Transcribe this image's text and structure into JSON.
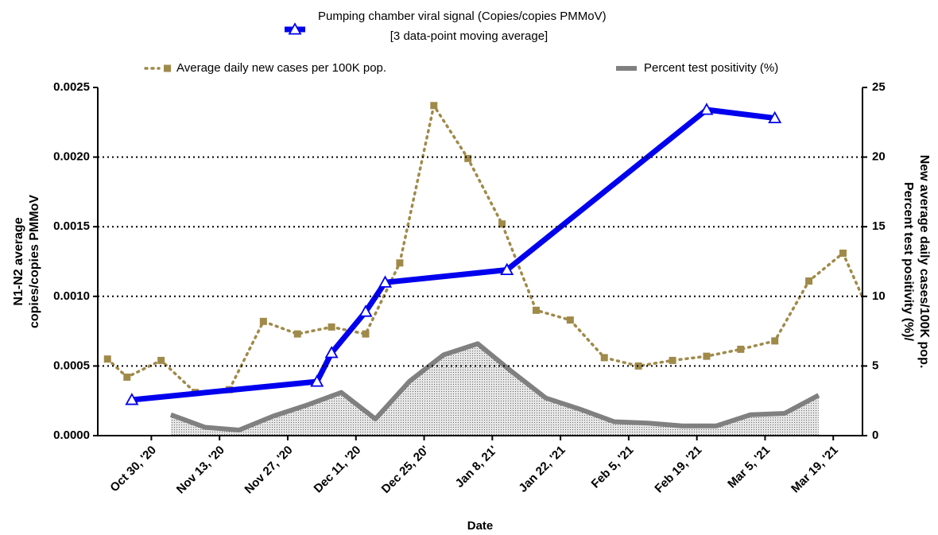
{
  "chart_data": {
    "type": "line",
    "legend_subtitle": "[3 data-point moving average]",
    "xlabel": "Date",
    "ylabel": [
      "N1-N2 average",
      "copies/copies PMMoV"
    ],
    "y2label": [
      "Percent test positivity (%)/",
      "New average daily cases/100K pop."
    ],
    "xlim": [
      "2020-10-19",
      "2021-03-25"
    ],
    "xticks": [
      {
        "value": "2020-10-30",
        "label": "Oct 30, '20"
      },
      {
        "value": "2020-11-13",
        "label": "Nov 13, '20"
      },
      {
        "value": "2020-11-27",
        "label": "Nov 27, '20"
      },
      {
        "value": "2020-12-11",
        "label": "Dec 11, '20"
      },
      {
        "value": "2020-12-25",
        "label": "Dec 25, 20'"
      },
      {
        "value": "2021-01-08",
        "label": "Jan 8, 21'"
      },
      {
        "value": "2021-01-22",
        "label": "Jan 22, '21"
      },
      {
        "value": "2021-02-05",
        "label": "Feb 5, '21"
      },
      {
        "value": "2021-02-19",
        "label": "Feb 19, '21"
      },
      {
        "value": "2021-03-05",
        "label": "Mar 5, '21"
      },
      {
        "value": "2021-03-19",
        "label": "Mar 19, '21"
      }
    ],
    "ylim": [
      0,
      0.0025
    ],
    "yticks": [
      {
        "value": 0,
        "label": "0.0000"
      },
      {
        "value": 0.0005,
        "label": "0.0005"
      },
      {
        "value": 0.001,
        "label": "0.0010"
      },
      {
        "value": 0.0015,
        "label": "0.0015"
      },
      {
        "value": 0.002,
        "label": "0.0020"
      },
      {
        "value": 0.0025,
        "label": "0.0025"
      }
    ],
    "y2lim": [
      0,
      25
    ],
    "y2ticks": [
      0,
      5,
      10,
      15,
      20,
      25
    ],
    "grid": true,
    "series": [
      {
        "name": "Pumping chamber viral signal (Copies/copies PMMoV)",
        "color": "#0000ee",
        "type": "line",
        "marker": "triangle",
        "axis": "y",
        "x": [
          "2020-10-26",
          "2020-12-03",
          "2020-12-06",
          "2020-12-13",
          "2020-12-17",
          "2021-01-11",
          "2021-02-21",
          "2021-03-07"
        ],
        "values": [
          0.000257,
          0.000388,
          0.000594,
          0.00089,
          0.0011,
          0.00119,
          0.00234,
          0.00228
        ]
      },
      {
        "name": "Average daily new cases per 100K pop.",
        "color": "#a08a4a",
        "type": "line",
        "marker": "square",
        "dash": true,
        "axis": "y2",
        "x": [
          "2020-10-21",
          "2020-10-25",
          "2020-11-01",
          "2020-11-08",
          "2020-11-15",
          "2020-11-22",
          "2020-11-29",
          "2020-12-06",
          "2020-12-13",
          "2020-12-20",
          "2020-12-27",
          "2021-01-03",
          "2021-01-10",
          "2021-01-17",
          "2021-01-24",
          "2021-01-31",
          "2021-02-07",
          "2021-02-14",
          "2021-02-21",
          "2021-02-28",
          "2021-03-07",
          "2021-03-14",
          "2021-03-21",
          "2021-03-28"
        ],
        "values": [
          5.5,
          4.2,
          5.4,
          3.1,
          3.3,
          8.2,
          7.3,
          7.8,
          7.3,
          12.4,
          23.7,
          19.9,
          15.2,
          9.0,
          8.3,
          5.6,
          5.0,
          5.4,
          5.7,
          6.2,
          6.8,
          11.1,
          13.1,
          7.6
        ]
      },
      {
        "name": "Percent test positivity (%)",
        "color": "#808080",
        "type": "area",
        "axis": "y2",
        "x": [
          "2020-11-03",
          "2020-11-10",
          "2020-11-17",
          "2020-11-24",
          "2020-12-01",
          "2020-12-08",
          "2020-12-15",
          "2020-12-22",
          "2020-12-29",
          "2021-01-05",
          "2021-01-12",
          "2021-01-19",
          "2021-01-26",
          "2021-02-02",
          "2021-02-09",
          "2021-02-16",
          "2021-02-23",
          "2021-03-02",
          "2021-03-09",
          "2021-03-16"
        ],
        "values": [
          1.5,
          0.6,
          0.4,
          1.4,
          2.2,
          3.1,
          1.2,
          3.9,
          5.8,
          6.6,
          4.6,
          2.7,
          1.9,
          1.0,
          0.9,
          0.7,
          0.7,
          1.5,
          1.6,
          2.9
        ]
      }
    ]
  }
}
